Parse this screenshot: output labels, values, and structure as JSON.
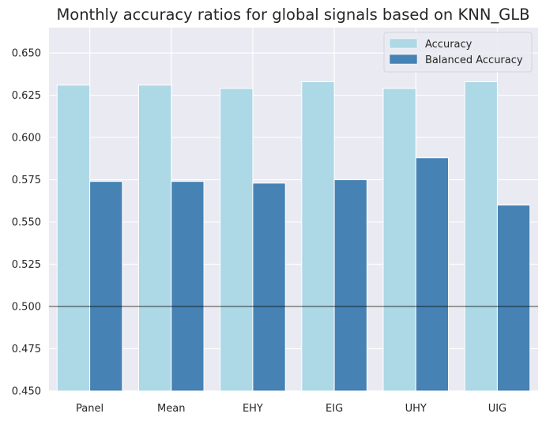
{
  "chart_data": {
    "type": "bar",
    "title": "Monthly accuracy ratios for global signals based on KNN_GLB",
    "xlabel": "",
    "ylabel": "",
    "categories": [
      "Panel",
      "Mean",
      "EHY",
      "EIG",
      "UHY",
      "UIG"
    ],
    "series": [
      {
        "name": "Accuracy",
        "color": "#add8e6",
        "values": [
          0.631,
          0.631,
          0.629,
          0.633,
          0.629,
          0.633
        ]
      },
      {
        "name": "Balanced Accuracy",
        "color": "#4682b4",
        "values": [
          0.574,
          0.574,
          0.573,
          0.575,
          0.588,
          0.56
        ]
      }
    ],
    "ylim": [
      0.45,
      0.665
    ],
    "yticks": [
      0.45,
      0.475,
      0.5,
      0.525,
      0.55,
      0.575,
      0.6,
      0.625,
      0.65
    ],
    "ytick_labels": [
      "0.450",
      "0.475",
      "0.500",
      "0.525",
      "0.550",
      "0.575",
      "0.600",
      "0.625",
      "0.650"
    ],
    "reference_line": 0.5,
    "grid": true,
    "legend_position": "top-right",
    "background_color": "#eaeaf2"
  }
}
